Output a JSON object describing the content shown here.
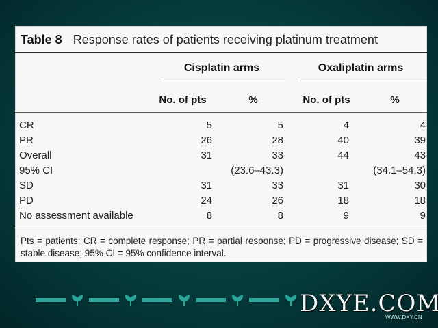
{
  "table": {
    "label": "Table 8",
    "caption": "Response rates of patients receiving platinum treatment",
    "groups": [
      "Cisplatin arms",
      "Oxaliplatin arms"
    ],
    "col_headers": [
      "No. of pts",
      "%",
      "No. of pts",
      "%"
    ],
    "rows": [
      {
        "label": "CR",
        "v1": "5",
        "v2": "5",
        "v3": "4",
        "v4": "4"
      },
      {
        "label": "PR",
        "v1": "26",
        "v2": "28",
        "v3": "40",
        "v4": "39"
      },
      {
        "label": "Overall",
        "v1": "31",
        "v2": "33",
        "v3": "44",
        "v4": "43"
      },
      {
        "label": "95% CI",
        "v1": "",
        "v2": "(23.6–43.3)",
        "v3": "",
        "v4": "(34.1–54.3)"
      },
      {
        "label": "SD",
        "v1": "31",
        "v2": "33",
        "v3": "31",
        "v4": "30"
      },
      {
        "label": "PD",
        "v1": "24",
        "v2": "26",
        "v3": "18",
        "v4": "18"
      },
      {
        "label": "No assessment available",
        "v1": "8",
        "v2": "8",
        "v3": "9",
        "v4": "9"
      }
    ],
    "footnote": "Pts = patients; CR = complete response; PR = partial response; PD = progressive disease; SD = stable disease; 95% CI = 95% confidence interval."
  },
  "watermark": {
    "text": "DXYE.COM",
    "small": "WWW.DXY.CN"
  },
  "decor": {
    "icon": "leaf-icon",
    "accent": "#2aa79a"
  }
}
